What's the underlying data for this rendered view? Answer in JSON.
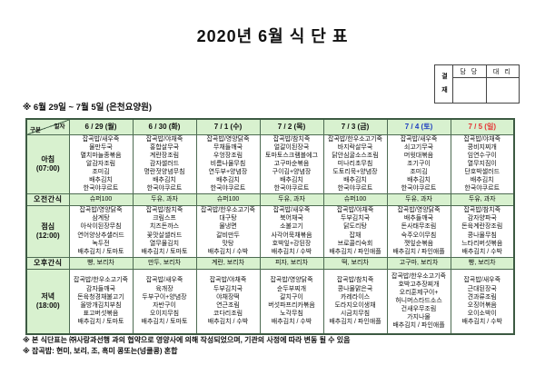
{
  "title": "2020년 6월 식 단 표",
  "subtitle": "※ 6월 29일 ~ 7월 5일 (은천요양원)",
  "approval": {
    "stamp_label": "결 재",
    "col1": "담 당",
    "col2": "대 리"
  },
  "table": {
    "corner": {
      "top": "일자",
      "bottom": "구분"
    },
    "columns": [
      {
        "label": "6 / 29 (월)",
        "color": "#111111"
      },
      {
        "label": "6 / 30 (화)",
        "color": "#111111"
      },
      {
        "label": "7 / 1 (수)",
        "color": "#111111"
      },
      {
        "label": "7 / 2 (목)",
        "color": "#111111"
      },
      {
        "label": "7 / 3 (금)",
        "color": "#111111"
      },
      {
        "label": "7 / 4 (토)",
        "color": "#1f3fbf"
      },
      {
        "label": "7 / 5 (일)",
        "color": "#e53333"
      }
    ],
    "rows": [
      {
        "name": "breakfast",
        "kind": "meal",
        "label": "아침",
        "time": "(07:00)",
        "cells": [
          [
            "잡곡밥/새우죽",
            "물만두국",
            "멸치마늘종볶음",
            "알감자조림",
            "조미김",
            "배추김치",
            "한국야쿠르트"
          ],
          [
            "잡곡밥/야채죽",
            "홍합살무국",
            "계란장조림",
            "감자샐러드",
            "명란젓양념무침",
            "배추김치",
            "한국야쿠르트"
          ],
          [
            "잡곡밥/영양닭죽",
            "무채들깨국",
            "우엉장조림",
            "비름나물무침",
            "연두부+양념장",
            "배추김치",
            "한국야쿠르트"
          ],
          [
            "잡곡밥/참치죽",
            "얼갈이된장국",
            "토마토스크램블에그",
            "고구마순볶음",
            "구이김+양념장",
            "배추김치",
            "한국야쿠르트"
          ],
          [
            "잡곡밥/한우소고기죽",
            "바지락살무국",
            "닭안심굴소스조림",
            "미나리초무침",
            "도토리묵+양념장",
            "배추김치",
            "한국야쿠르트"
          ],
          [
            "잡곡밥/새우죽",
            "쇠고기무국",
            "머윗대볶음",
            "조기구이",
            "조미김",
            "배추김치",
            "한국야쿠르트"
          ],
          [
            "잡곡밥/야채죽",
            "콩비지찌개",
            "임연수구이",
            "열무지짐이",
            "단호박샐러드",
            "배추김치",
            "한국야쿠르트"
          ]
        ]
      },
      {
        "name": "morning-snack",
        "kind": "snack",
        "label": "오전간식",
        "time": "",
        "cells": [
          "슈퍼100",
          "두유, 과자",
          "슈퍼100",
          "두유, 과자",
          "슈퍼100",
          "두유, 과자",
          "두유, 과자"
        ]
      },
      {
        "name": "lunch",
        "kind": "meal",
        "label": "점심",
        "time": "(12:00)",
        "cells": [
          [
            "잡곡밥/영양닭죽",
            "삼계탕",
            "아삭이된장무침",
            "연어양상추샐러드",
            "녹두전",
            "배추김치 / 토마토"
          ],
          [
            "잡곡밥/참치죽",
            "크림스프",
            "치즈돈까스",
            "꽃맛살샐러드",
            "열무물김치",
            "배추김치 / 토마토"
          ],
          [
            "잡곡밥/한우소고기죽",
            "대구탕",
            "물냉면",
            "갈비만두",
            "맛탕",
            "배추김치 / 수박"
          ],
          [
            "잡곡밥/새우죽",
            "북어채국",
            "소불고기",
            "사각어묵채볶음",
            "호박잎+강된장",
            "배추김치 / 수박"
          ],
          [
            "잡곡밥/야채죽",
            "두부김치국",
            "닭도리탕",
            "잡채",
            "브로콜리숙회",
            "배추김치 / 파인애플"
          ],
          [
            "잡곡밥/영양닭죽",
            "배추들깨국",
            "돈사태무조림",
            "숙주오이무침",
            "깻잎순볶음",
            "배추김치 / 파인애플"
          ],
          [
            "잡곡밥/참치죽",
            "감자양파국",
            "돈육계란장조림",
            "콩나물무침",
            "느타리버섯볶음",
            "배추김치 / 수박"
          ]
        ]
      },
      {
        "name": "afternoon-snack",
        "kind": "snack",
        "label": "오후간식",
        "time": "",
        "cells": [
          "빵, 보리차",
          "만두, 보리차",
          "계란, 보리차",
          "피자, 보리차",
          "떡, 보리차",
          "고구마, 보리차",
          "빵, 보리차"
        ]
      },
      {
        "name": "dinner",
        "kind": "meal",
        "label": "저녁",
        "time": "(18:00)",
        "cells": [
          [
            "잡곡밥/한우소고기죽",
            "감자들깨국",
            "돈육청경채불고기",
            "올방개김치부침",
            "표고버섯볶음",
            "배추김치 / 토마토"
          ],
          [
            "잡곡밥/새우죽",
            "육개장",
            "두부구이+양념장",
            "자반구이",
            "오이지무침",
            "배추김치 / 토마토"
          ],
          [
            "잡곡밥/야채죽",
            "두부김치국",
            "야채장떡",
            "연근조림",
            "코다리조림",
            "배추김치 / 수박"
          ],
          [
            "잡곡밥/영양닭죽",
            "순두부찌개",
            "갈치구이",
            "버섯파프리카볶음",
            "노각무침",
            "배추김치 / 수박"
          ],
          [
            "잡곡밥/참치죽",
            "콩나물맑은국",
            "카레라이스",
            "도라지오이생채",
            "시금치무침",
            "배추김치 / 파인애플"
          ],
          [
            "잡곡밥/한우소고기죽",
            "호박고추장찌개",
            "오리훈제구이+",
            "허니머스타드소스",
            "건새우무조림",
            "가지나물",
            "배추김치 / 파인애플"
          ],
          [
            "잡곡밥/새우죽",
            "근대된장국",
            "견과류조림",
            "오징어볶음",
            "오이소박이",
            "배추김치 / 수박"
          ]
        ]
      }
    ]
  },
  "footnotes": [
    "※ 본 식단표는 ㈜사랑과선행 과의 협약으로 영양사에 의해 작성되었으며, 기관의 사정에 따라 변동 될 수 있음",
    "※ 잡곡밥: 현미, 보리, 조, 흑미 콩또는(넝쿨콩) 혼합"
  ],
  "colors": {
    "header_green": "#d8f1cf",
    "grid_line": "#4d6b52",
    "saturday_blue": "#1f3fbf",
    "sunday_red": "#e53333"
  }
}
